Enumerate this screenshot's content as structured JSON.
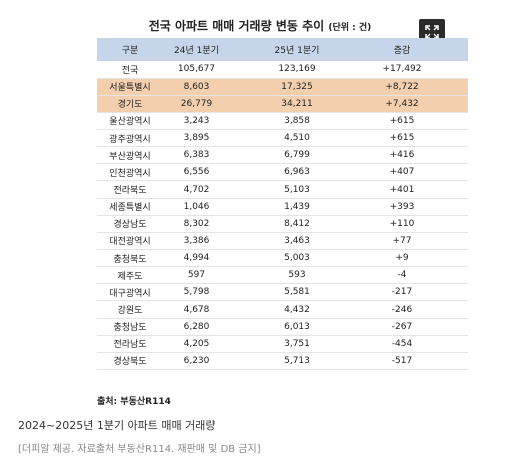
{
  "title": "전국 아파트 매매 거래량 변동 추이",
  "unit": "(단위 : 건)",
  "table": {
    "header": [
      "구분",
      "24년 1분기",
      "25년 1분기",
      "증감"
    ],
    "rows": [
      [
        "전국",
        "105,677",
        "123,169",
        "+17,492"
      ],
      [
        "서울특별시",
        "8,603",
        "17,325",
        "+8,722"
      ],
      [
        "경기도",
        "26,779",
        "34,211",
        "+7,432"
      ],
      [
        "울산광역시",
        "3,243",
        "3,858",
        "+615"
      ],
      [
        "광주광역시",
        "3,895",
        "4,510",
        "+615"
      ],
      [
        "부산광역시",
        "6,383",
        "6,799",
        "+416"
      ],
      [
        "인천광역시",
        "6,556",
        "6,963",
        "+407"
      ],
      [
        "전라북도",
        "4,702",
        "5,103",
        "+401"
      ],
      [
        "세종특별시",
        "1,046",
        "1,439",
        "+393"
      ],
      [
        "경상남도",
        "8,302",
        "8,412",
        "+110"
      ],
      [
        "대전광역시",
        "3,386",
        "3,463",
        "+77"
      ],
      [
        "충청북도",
        "4,994",
        "5,003",
        "+9"
      ],
      [
        "제주도",
        "597",
        "593",
        "-4"
      ],
      [
        "대구광역시",
        "5,798",
        "5,581",
        "-217"
      ],
      [
        "강원도",
        "4,678",
        "4,432",
        "-246"
      ],
      [
        "충청남도",
        "6,280",
        "6,013",
        "-267"
      ],
      [
        "전라남도",
        "4,205",
        "3,751",
        "-454"
      ],
      [
        "경상북도",
        "6,230",
        "5,713",
        "-517"
      ]
    ]
  },
  "source": "출처: 부동산R114",
  "caption": "2024~2025년 1분기 아파트 매매 거래량",
  "credit": "[더피알 제공. 자료출처 부동산R114. 재판매 및 DB 금지]"
}
